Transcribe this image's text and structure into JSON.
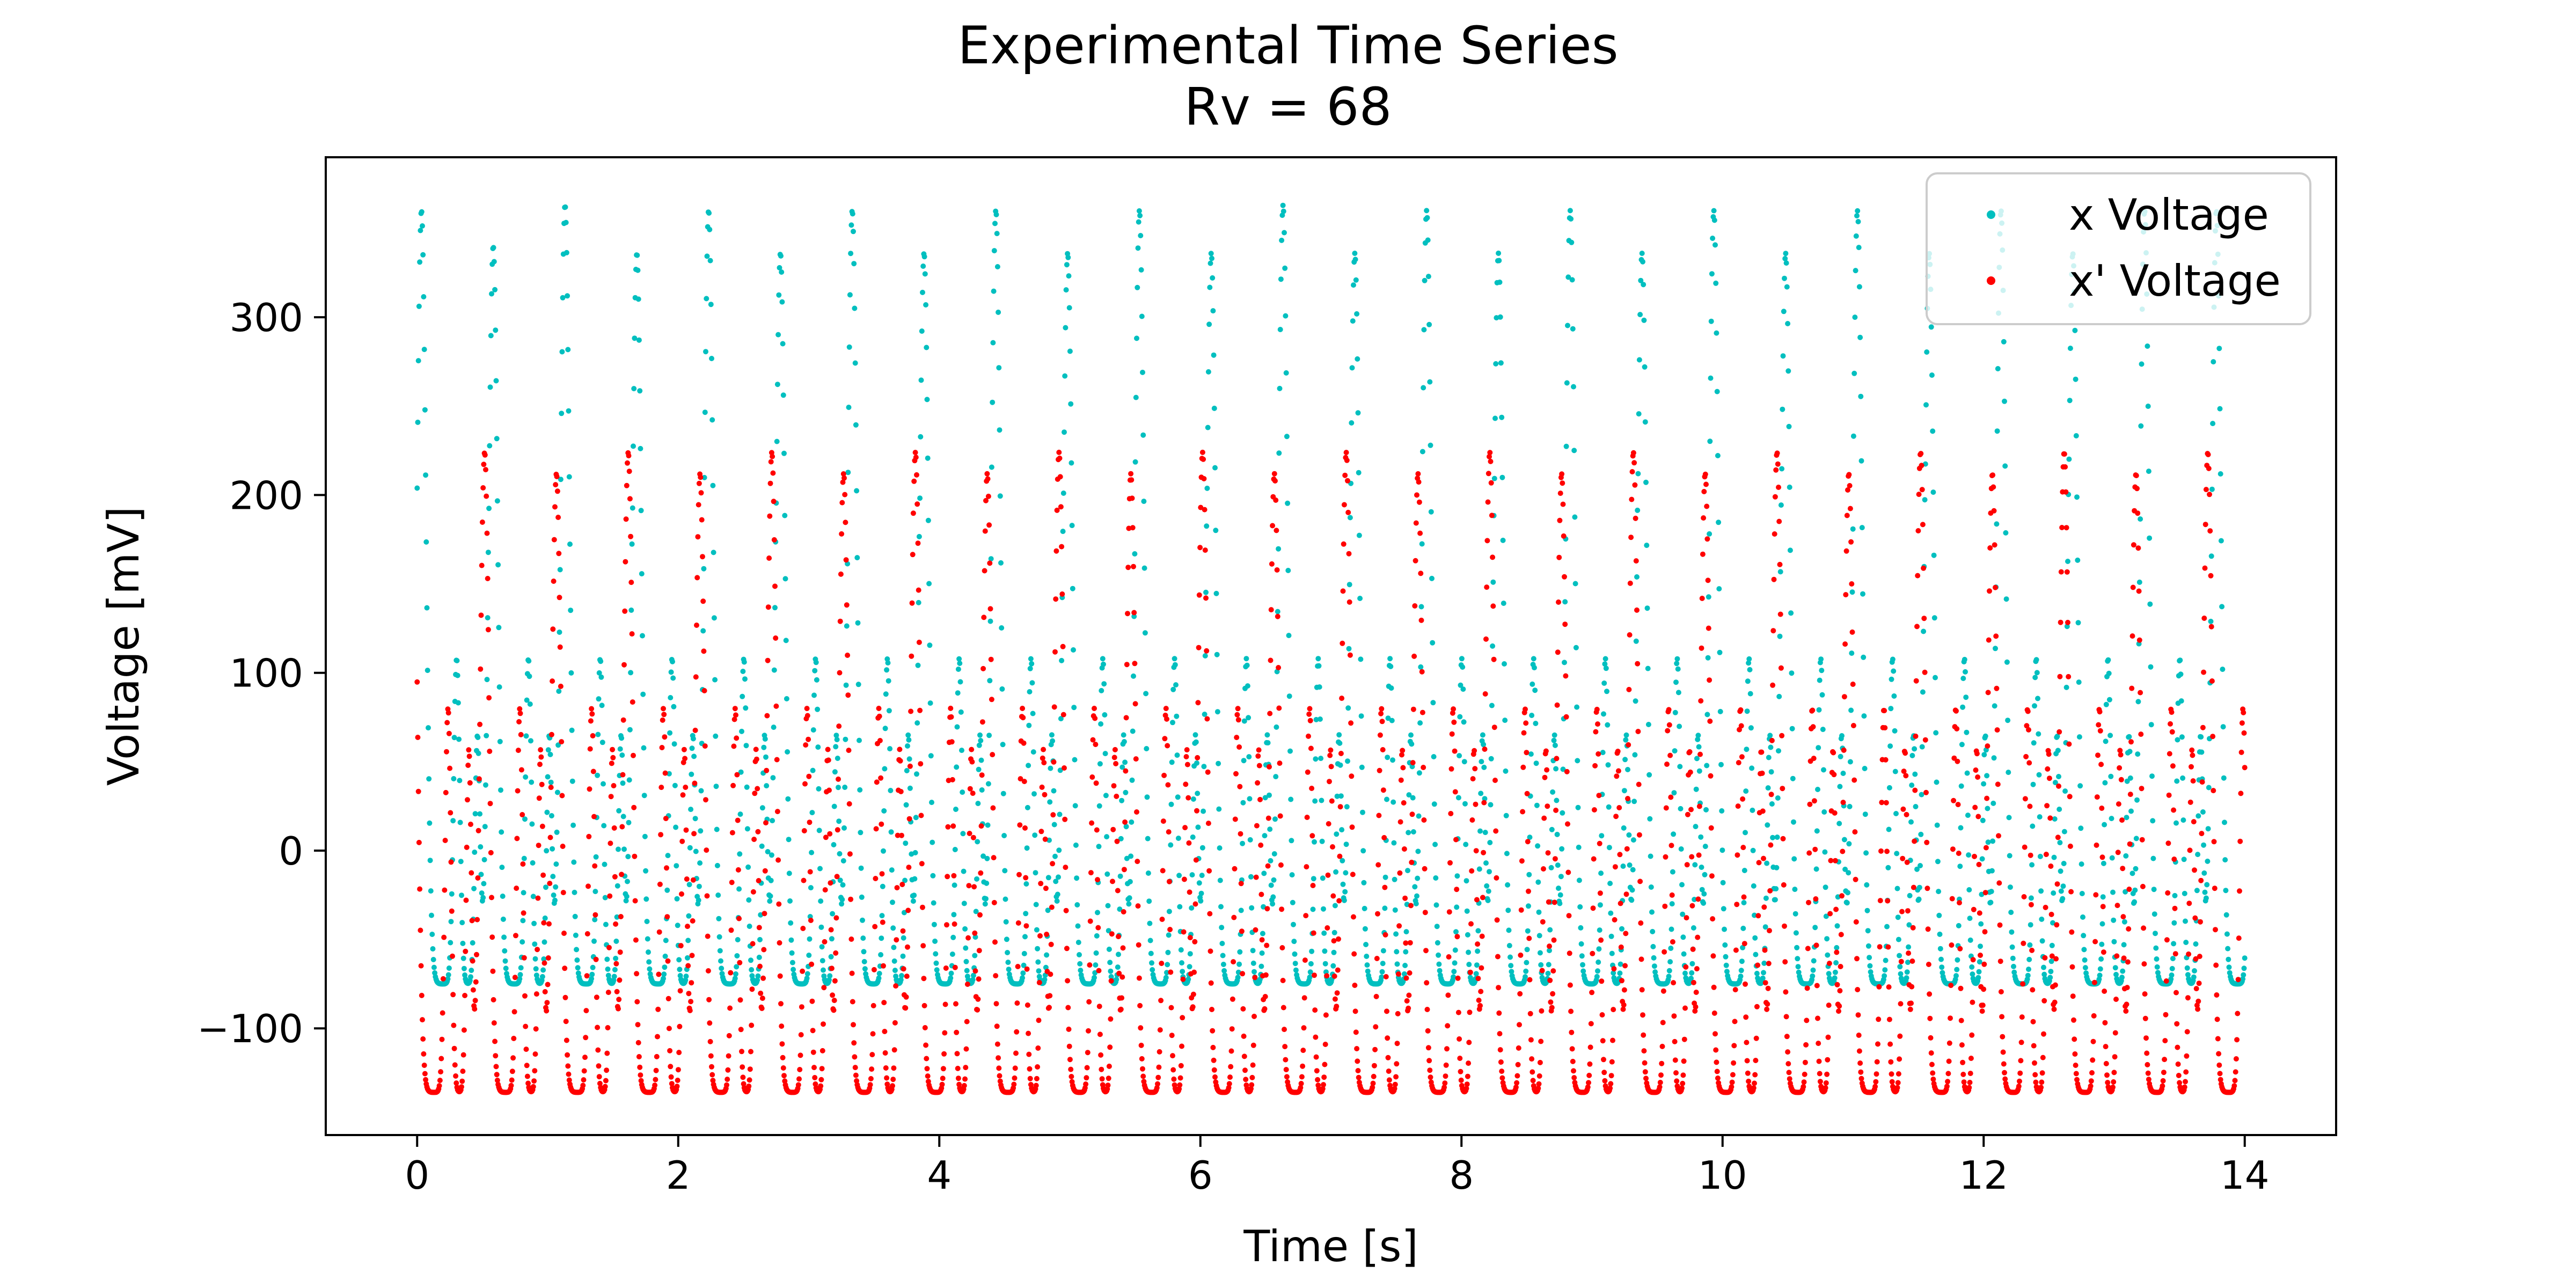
{
  "chart_data": {
    "type": "scatter",
    "title": "Experimental Time Series",
    "subtitle": "Rv = 68",
    "xlabel": "Time [s]",
    "ylabel": "Voltage [mV]",
    "xlim": [
      -0.7,
      14.7
    ],
    "ylim": [
      -160,
      390
    ],
    "xticks": [
      0,
      2,
      4,
      6,
      8,
      10,
      12,
      14
    ],
    "xtick_labels": [
      "0",
      "2",
      "4",
      "6",
      "8",
      "10",
      "12",
      "14"
    ],
    "yticks": [
      -100,
      0,
      100,
      200,
      300
    ],
    "ytick_labels": [
      "−100",
      "0",
      "100",
      "200",
      "300"
    ],
    "grid": false,
    "legend_position": "upper-right",
    "time_range": [
      0,
      14
    ],
    "sample_count": 2800,
    "period_s": 0.55,
    "series": [
      {
        "name": "x Voltage",
        "color": "#00bfbf",
        "peaks_mv": [
          360,
          340,
          363,
          336,
          360,
          336,
          360,
          336,
          360,
          336,
          360,
          336,
          363,
          336,
          360,
          336,
          360,
          336,
          360,
          336,
          360,
          336,
          360,
          336,
          360
        ],
        "secondary_peak_mv": 108,
        "tertiary_peak_mv": 64,
        "min_mv": -75
      },
      {
        "name": "x' Voltage",
        "color": "#ff0000",
        "peaks_mv": [
          224,
          212,
          224,
          212,
          224,
          212,
          224,
          212,
          224,
          212,
          224,
          212,
          224,
          212,
          224,
          212,
          224,
          212,
          224,
          212,
          224,
          212,
          224,
          212,
          224
        ],
        "secondary_peak_mv": 80,
        "tertiary_peak_mv": 56,
        "min_mv": -136
      }
    ]
  }
}
